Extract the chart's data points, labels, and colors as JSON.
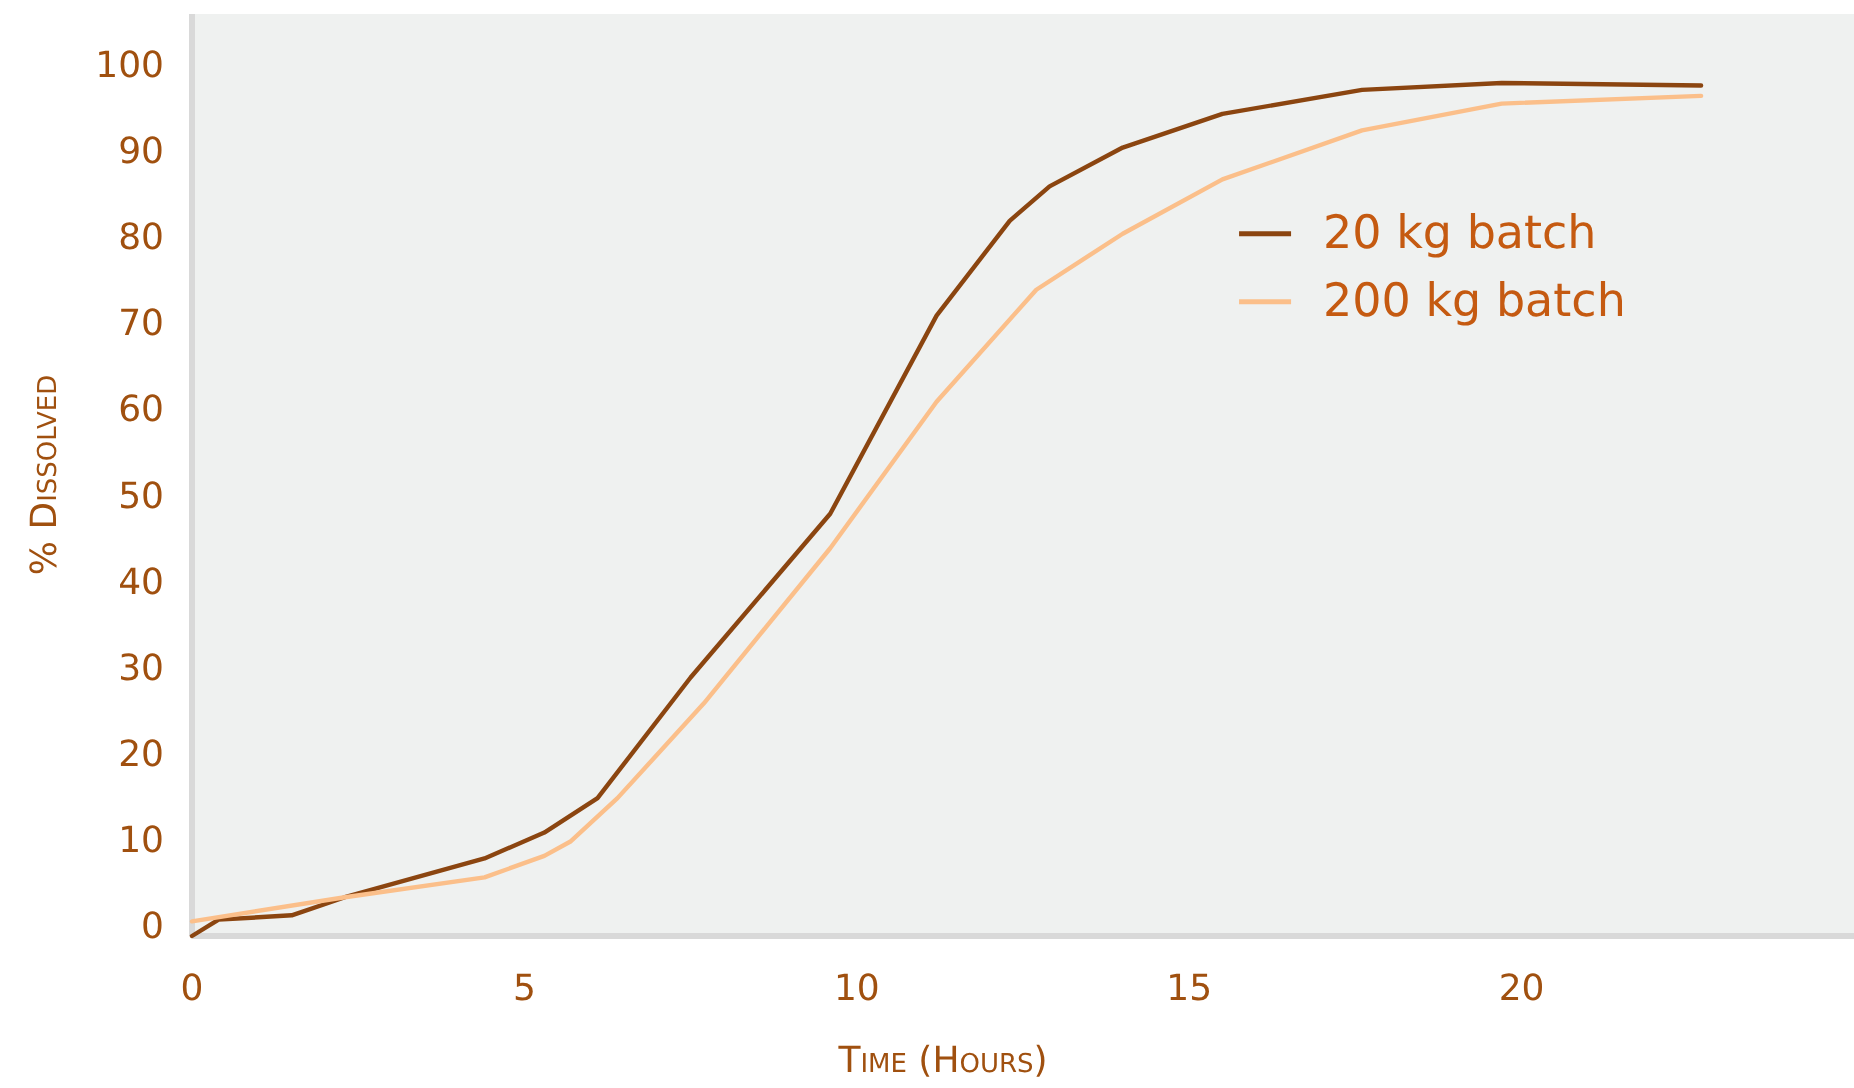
{
  "chart_data": {
    "type": "line",
    "xlabel": "Time (Hours)",
    "ylabel": "% Dissolved",
    "xlim": [
      0,
      25
    ],
    "xticks": [
      0,
      5,
      10,
      15,
      20
    ],
    "ylim": [
      -1,
      106
    ],
    "yticks": [
      0,
      10,
      20,
      30,
      40,
      50,
      60,
      70,
      80,
      90,
      100
    ],
    "grid": false,
    "legend": "top right",
    "series": [
      {
        "name": "20 kg batch",
        "color": "#8b4510",
        "x": [
          0,
          0.4,
          1.5,
          2.3,
          4.4,
          5.3,
          6.1,
          7.5,
          9.6,
          11.2,
          12.3,
          12.9,
          14,
          15.5,
          17.6,
          19.7,
          22.7
        ],
        "values": [
          -1,
          0.9,
          1.4,
          3.5,
          8,
          11,
          15,
          29,
          48,
          71,
          82,
          86,
          90.5,
          94.4,
          97.2,
          98,
          97.7
        ]
      },
      {
        "name": "200 kg batch",
        "color": "#fbbf8a",
        "x": [
          0,
          2.3,
          4.4,
          5.3,
          5.7,
          6.4,
          7.7,
          9.6,
          11.2,
          12.7,
          14,
          15.5,
          17.6,
          19.7,
          22.7
        ],
        "values": [
          0.7,
          3.5,
          5.8,
          8.3,
          10,
          15,
          26,
          44,
          61,
          74,
          80.5,
          86.8,
          92.5,
          95.6,
          96.5
        ]
      }
    ]
  }
}
